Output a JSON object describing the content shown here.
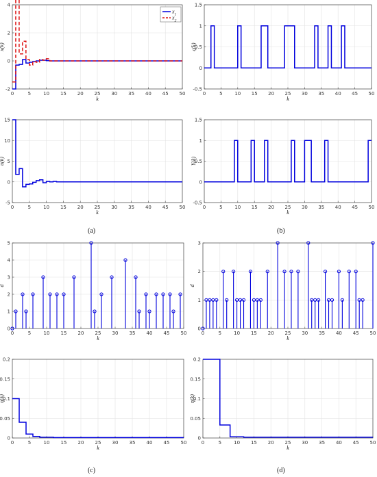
{
  "panel_labels": [
    "(a)",
    "(b)",
    "(c)",
    "(d)"
  ],
  "chart_data": [
    {
      "type": "line",
      "step": true,
      "ylabel": "x(k)",
      "xlabel": "k",
      "xlim": [
        0,
        50
      ],
      "ylim": [
        -2,
        4
      ],
      "xticks": [
        0,
        5,
        10,
        15,
        20,
        25,
        30,
        35,
        40,
        45,
        50
      ],
      "yticks": [
        -2,
        0,
        2,
        4
      ],
      "grid": true,
      "legend_position": "top-right",
      "series": [
        {
          "name": "x1",
          "color": "#0000dd",
          "dash": "solid",
          "x": [
            0,
            1,
            2,
            3,
            4,
            5,
            6,
            7,
            8,
            9,
            10,
            11,
            12,
            13,
            50
          ],
          "y": [
            -2,
            -0.3,
            -0.25,
            0.1,
            -0.15,
            -0.1,
            -0.05,
            0,
            0.05,
            0.05,
            0.02,
            0,
            0,
            0,
            0
          ]
        },
        {
          "name": "x2",
          "color": "#dd1111",
          "dash": "dashed",
          "x": [
            0,
            1,
            2,
            3,
            4,
            5,
            6,
            7,
            8,
            9,
            10,
            11,
            12,
            13,
            50
          ],
          "y": [
            -1.5,
            4.5,
            0.5,
            1.4,
            0.1,
            -0.3,
            -0.05,
            -0.1,
            0.1,
            0.05,
            0.15,
            0,
            0,
            0,
            0
          ]
        }
      ]
    },
    {
      "type": "line",
      "step": true,
      "ylabel": "ς(k)",
      "xlabel": "k",
      "xlim": [
        0,
        50
      ],
      "ylim": [
        -0.5,
        1.5
      ],
      "xticks": [
        0,
        5,
        10,
        15,
        20,
        25,
        30,
        35,
        40,
        45,
        50
      ],
      "yticks": [
        -0.5,
        0,
        0.5,
        1,
        1.5
      ],
      "grid": true,
      "series": [
        {
          "color": "#0000dd",
          "x": [
            0,
            2,
            3,
            10,
            11,
            17,
            19,
            24,
            27,
            33,
            34,
            37,
            38,
            41,
            42,
            50
          ],
          "y": [
            0,
            1,
            0,
            1,
            0,
            1,
            0,
            1,
            0,
            1,
            0,
            1,
            0,
            1,
            0,
            0
          ]
        }
      ]
    },
    {
      "type": "line",
      "step": true,
      "ylabel": "u(k)",
      "xlabel": "k",
      "xlim": [
        0,
        50
      ],
      "ylim": [
        -5,
        15
      ],
      "xticks": [
        0,
        5,
        10,
        15,
        20,
        25,
        30,
        35,
        40,
        45,
        50
      ],
      "yticks": [
        -5,
        0,
        5,
        10,
        15
      ],
      "grid": true,
      "series": [
        {
          "color": "#0000dd",
          "x": [
            0,
            1,
            2,
            3,
            4,
            5,
            6,
            7,
            8,
            9,
            10,
            11,
            12,
            13,
            14,
            50
          ],
          "y": [
            15,
            1.8,
            3.2,
            -1.2,
            -0.6,
            -0.5,
            -0.1,
            0.3,
            0.5,
            -0.2,
            0.1,
            0,
            0.1,
            0,
            0,
            0
          ]
        }
      ]
    },
    {
      "type": "line",
      "step": true,
      "ylabel": "Υ(k)",
      "xlabel": "k",
      "xlim": [
        0,
        50
      ],
      "ylim": [
        -0.5,
        1.5
      ],
      "xticks": [
        0,
        5,
        10,
        15,
        20,
        25,
        30,
        35,
        40,
        45,
        50
      ],
      "yticks": [
        -0.5,
        0,
        0.5,
        1,
        1.5
      ],
      "grid": true,
      "series": [
        {
          "color": "#0000dd",
          "x": [
            0,
            9,
            10,
            14,
            15,
            18,
            19,
            26,
            27,
            30,
            32,
            36,
            37,
            49,
            50
          ],
          "y": [
            0,
            1,
            0,
            1,
            0,
            1,
            0,
            1,
            0,
            1,
            0,
            1,
            0,
            1,
            1
          ]
        }
      ]
    },
    {
      "type": "stem",
      "ylabel": "d",
      "xlabel": "k",
      "xlim": [
        0,
        50
      ],
      "ylim": [
        0,
        5
      ],
      "xticks": [
        0,
        5,
        10,
        15,
        20,
        25,
        30,
        35,
        40,
        45,
        50
      ],
      "yticks": [
        0,
        1,
        2,
        3,
        4,
        5
      ],
      "grid": true,
      "series": [
        {
          "color": "#0000dd",
          "x": [
            0,
            1,
            3,
            4,
            6,
            9,
            11,
            13,
            15,
            18,
            23,
            24,
            26,
            29,
            33,
            36,
            37,
            39,
            40,
            42,
            44,
            46,
            47,
            49
          ],
          "y": [
            0,
            1,
            2,
            1,
            2,
            3,
            2,
            2,
            2,
            3,
            5,
            1,
            2,
            3,
            4,
            3,
            1,
            2,
            1,
            2,
            2,
            2,
            1,
            2
          ]
        }
      ]
    },
    {
      "type": "stem",
      "ylabel": "d",
      "xlabel": "k",
      "xlim": [
        0,
        50
      ],
      "ylim": [
        0,
        3
      ],
      "xticks": [
        0,
        5,
        10,
        15,
        20,
        25,
        30,
        35,
        40,
        45,
        50
      ],
      "yticks": [
        0,
        1,
        2,
        3
      ],
      "grid": true,
      "series": [
        {
          "color": "#0000dd",
          "x": [
            0,
            1,
            2,
            3,
            4,
            6,
            7,
            9,
            10,
            11,
            12,
            14,
            15,
            16,
            17,
            19,
            22,
            24,
            26,
            28,
            31,
            32,
            33,
            34,
            36,
            37,
            38,
            40,
            41,
            43,
            45,
            46,
            47,
            50
          ],
          "y": [
            0,
            1,
            1,
            1,
            1,
            2,
            1,
            2,
            1,
            1,
            1,
            2,
            1,
            1,
            1,
            2,
            3,
            2,
            2,
            2,
            3,
            1,
            1,
            1,
            2,
            1,
            1,
            2,
            1,
            2,
            2,
            1,
            1,
            3
          ]
        }
      ]
    },
    {
      "type": "line",
      "step": true,
      "ylabel": "η(k)",
      "xlabel": "k",
      "xlim": [
        0,
        50
      ],
      "ylim": [
        0,
        0.2
      ],
      "xticks": [
        0,
        5,
        10,
        15,
        20,
        25,
        30,
        35,
        40,
        45,
        50
      ],
      "yticks": [
        0,
        0.05,
        0.1,
        0.15,
        0.2
      ],
      "grid": true,
      "series": [
        {
          "color": "#0000dd",
          "x": [
            0,
            2,
            4,
            6,
            8,
            12,
            50
          ],
          "y": [
            0.1,
            0.04,
            0.01,
            0.004,
            0.002,
            0.001,
            0.001
          ]
        }
      ]
    },
    {
      "type": "line",
      "step": true,
      "ylabel": "η(k)",
      "xlabel": "k",
      "xlim": [
        0,
        50
      ],
      "ylim": [
        0,
        0.2
      ],
      "xticks": [
        0,
        5,
        10,
        15,
        20,
        25,
        30,
        35,
        40,
        45,
        50
      ],
      "yticks": [
        0,
        0.05,
        0.1,
        0.15,
        0.2
      ],
      "grid": true,
      "series": [
        {
          "color": "#0000dd",
          "x": [
            0,
            5,
            8,
            12,
            50
          ],
          "y": [
            0.2,
            0.033,
            0.003,
            0.002,
            0.002
          ]
        }
      ]
    }
  ]
}
